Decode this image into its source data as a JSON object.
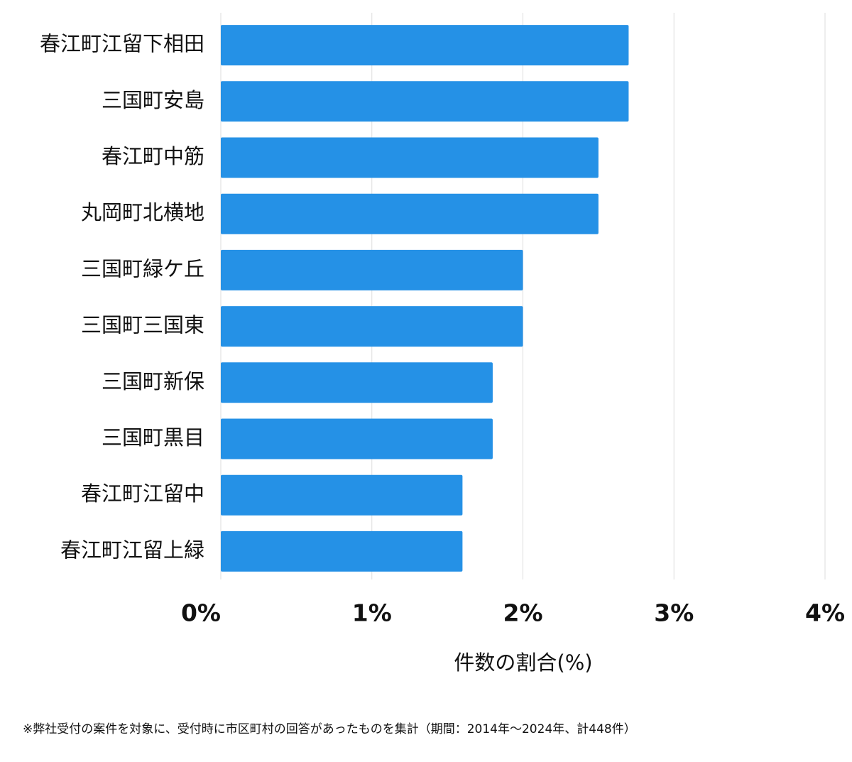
{
  "chart_data": {
    "type": "bar",
    "orientation": "horizontal",
    "categories": [
      "春江町江留下相田",
      "三国町安島",
      "春江町中筋",
      "丸岡町北横地",
      "三国町緑ケ丘",
      "三国町三国東",
      "三国町新保",
      "三国町黒目",
      "春江町江留中",
      "春江町江留上緑"
    ],
    "values": [
      2.7,
      2.7,
      2.5,
      2.5,
      2.0,
      2.0,
      1.8,
      1.8,
      1.6,
      1.6
    ],
    "color": "#2591e6",
    "xlim": [
      0,
      4
    ],
    "xticks": [
      {
        "value": 0,
        "label": "0%"
      },
      {
        "value": 1,
        "label": "1%"
      },
      {
        "value": 2,
        "label": "2%"
      },
      {
        "value": 3,
        "label": "3%"
      },
      {
        "value": 4,
        "label": "4%"
      }
    ],
    "xlabel": "件数の割合(%)",
    "grid": true,
    "note": "※弊社受付の案件を対象に、受付時に市区町村の回答があったものを集計（期間：2014年〜2024年、計448件）"
  }
}
